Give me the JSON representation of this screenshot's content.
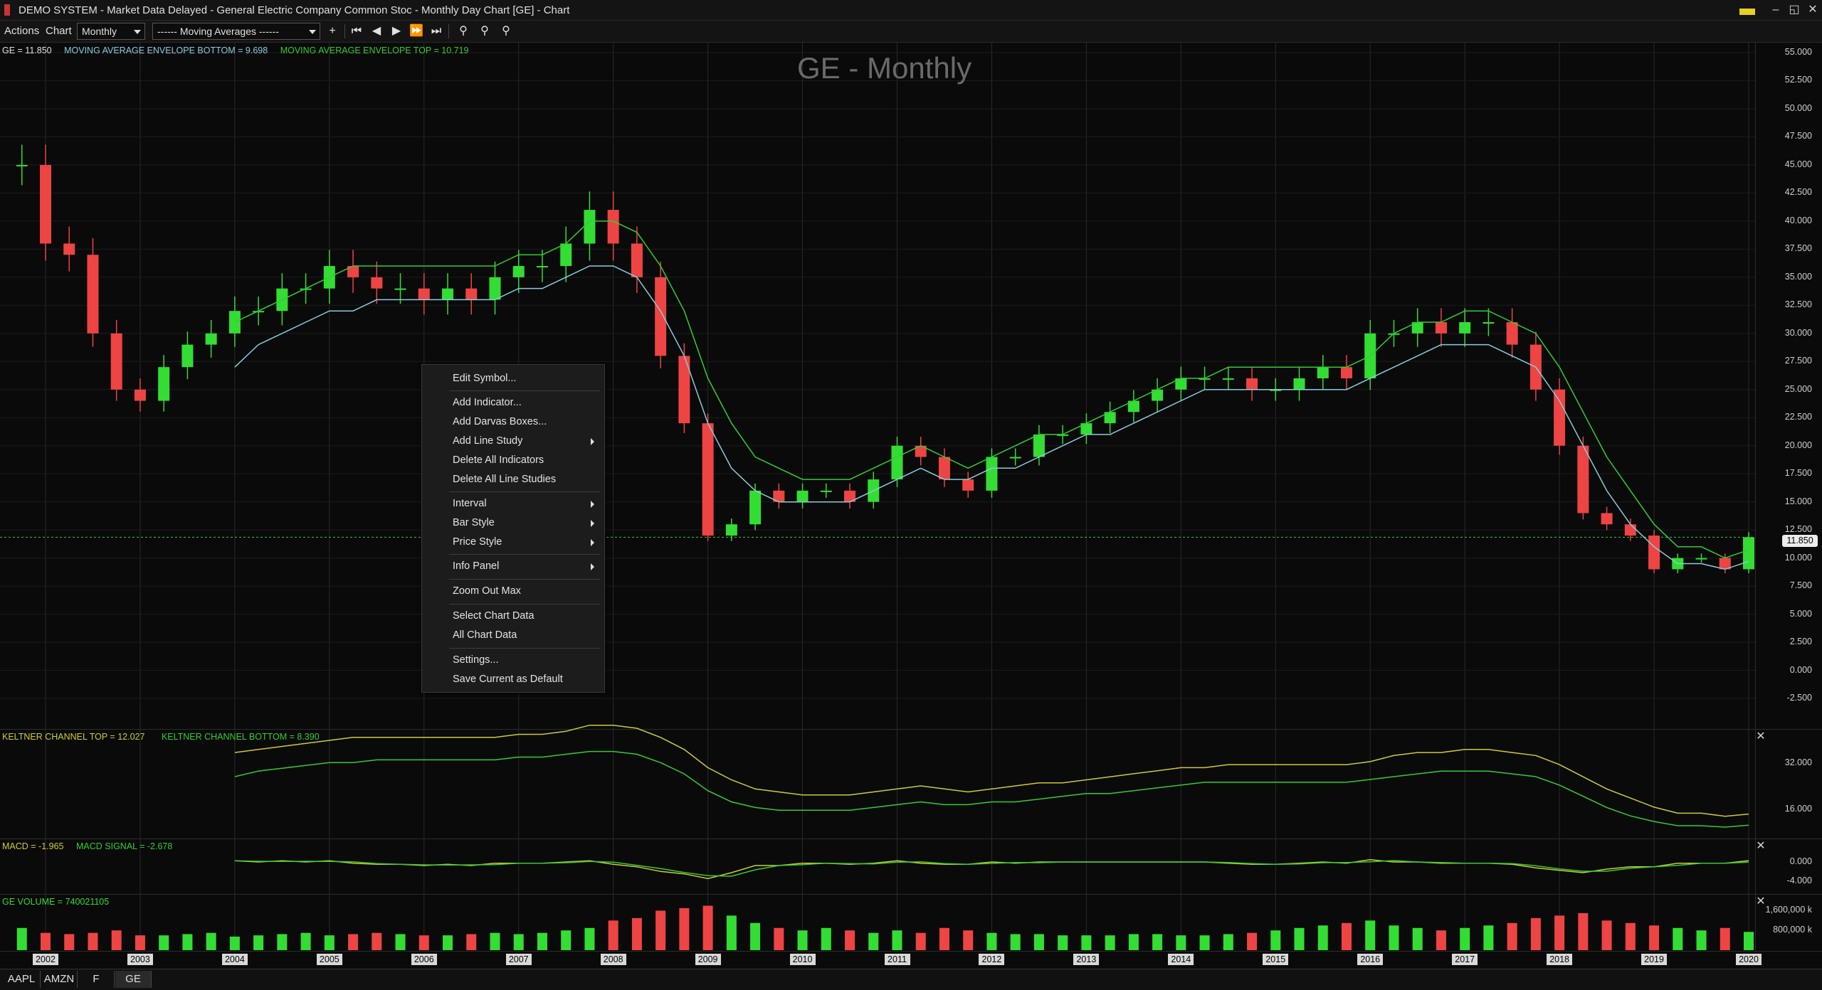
{
  "window": {
    "title": "DEMO SYSTEM - Market Data Delayed - General Electric Company Common Stoc - Monthly Day Chart [GE] - Chart",
    "buttons": [
      "–",
      "◱",
      "✕"
    ]
  },
  "toolbar": {
    "menus": [
      "Actions",
      "Chart"
    ],
    "interval": "Monthly",
    "study": "------ Moving Averages ------"
  },
  "chart": {
    "title": "GE - Monthly",
    "price_legend": {
      "symbol": "GE = 11.850",
      "bottom": "MOVING AVERAGE ENVELOPE BOTTOM = 9.698",
      "top": "MOVING AVERAGE ENVELOPE TOP = 10.719"
    },
    "last_price_tag": "11.850",
    "keltner_legend": {
      "top": "KELTNER CHANNEL TOP = 12.027",
      "bottom": "KELTNER CHANNEL BOTTOM = 8.390"
    },
    "macd_legend": {
      "macd": "MACD = -1.965",
      "signal": "MACD SIGNAL = -2.678"
    },
    "volume_legend": "GE VOLUME = 740021105",
    "price_axis": [
      "55.000",
      "52.500",
      "50.000",
      "47.500",
      "45.000",
      "42.500",
      "40.000",
      "37.500",
      "35.000",
      "32.500",
      "30.000",
      "27.500",
      "25.000",
      "22.500",
      "20.000",
      "17.500",
      "15.000",
      "12.500",
      "10.000",
      "7.500",
      "5.000",
      "2.500",
      "0.000",
      "-2.500"
    ],
    "keltner_axis": [
      "32.000",
      "16.000"
    ],
    "macd_axis": [
      "0.000",
      "-4.000"
    ],
    "volume_axis": [
      "1,600,000 k",
      "800,000 k"
    ],
    "years": [
      "2002",
      "2003",
      "2004",
      "2005",
      "2006",
      "2007",
      "2008",
      "2009",
      "2010",
      "2011",
      "2012",
      "2013",
      "2014",
      "2015",
      "2016",
      "2017",
      "2018",
      "2019",
      "2020"
    ],
    "colors": {
      "up": "#33dd33",
      "down": "#ee4444",
      "env_top": "#33cc33",
      "env_bottom": "#88ccdd",
      "kelt_top": "#cccc33",
      "kelt_bottom": "#33cc33"
    }
  },
  "chart_data": {
    "type": "candlestick",
    "title": "GE - Monthly",
    "ylim": [
      -2.5,
      55
    ],
    "x": [
      "2001-10",
      "2002-01",
      "2002-04",
      "2002-07",
      "2002-10",
      "2003-01",
      "2003-04",
      "2003-07",
      "2003-10",
      "2004-01",
      "2004-04",
      "2004-07",
      "2004-10",
      "2005-01",
      "2005-04",
      "2005-07",
      "2005-10",
      "2006-01",
      "2006-04",
      "2006-07",
      "2006-10",
      "2007-01",
      "2007-04",
      "2007-07",
      "2007-10",
      "2008-01",
      "2008-04",
      "2008-07",
      "2008-10",
      "2009-01",
      "2009-04",
      "2009-07",
      "2009-10",
      "2010-01",
      "2010-04",
      "2010-07",
      "2010-10",
      "2011-01",
      "2011-04",
      "2011-07",
      "2011-10",
      "2012-01",
      "2012-04",
      "2012-07",
      "2012-10",
      "2013-01",
      "2013-04",
      "2013-07",
      "2013-10",
      "2014-01",
      "2014-04",
      "2014-07",
      "2014-10",
      "2015-01",
      "2015-04",
      "2015-07",
      "2015-10",
      "2016-01",
      "2016-04",
      "2016-07",
      "2016-10",
      "2017-01",
      "2017-04",
      "2017-07",
      "2017-10",
      "2018-01",
      "2018-04",
      "2018-07",
      "2018-10",
      "2019-01",
      "2019-04",
      "2019-07",
      "2019-10",
      "2020-01"
    ],
    "close": [
      45,
      38,
      37,
      30,
      25,
      24,
      27,
      29,
      30,
      32,
      32,
      34,
      34,
      36,
      35,
      34,
      34,
      33,
      34,
      33,
      35,
      36,
      36,
      38,
      41,
      38,
      35,
      28,
      22,
      12,
      13,
      16,
      15,
      16,
      16,
      15,
      17,
      20,
      19,
      17,
      16,
      19,
      19,
      21,
      21,
      22,
      23,
      24,
      25,
      26,
      26,
      26,
      25,
      25,
      26,
      27,
      26,
      30,
      30,
      31,
      30,
      31,
      31,
      29,
      25,
      20,
      14,
      13,
      12,
      9,
      10,
      10,
      9,
      11.85
    ],
    "envelope_top": [
      null,
      null,
      null,
      null,
      null,
      null,
      null,
      null,
      null,
      31,
      32,
      33,
      34,
      35,
      36,
      36,
      36,
      36,
      36,
      36,
      36,
      37,
      37,
      38,
      40,
      40,
      39,
      36,
      32,
      26,
      22,
      19,
      18,
      17,
      17,
      17,
      18,
      19,
      20,
      19,
      18,
      19,
      20,
      21,
      21,
      22,
      23,
      24,
      25,
      26,
      26,
      27,
      27,
      27,
      27,
      27,
      27,
      28,
      30,
      31,
      31,
      32,
      32,
      31,
      30,
      27,
      23,
      19,
      16,
      13,
      11,
      11,
      10,
      10.72
    ],
    "envelope_bottom": [
      null,
      null,
      null,
      null,
      null,
      null,
      null,
      null,
      null,
      27,
      29,
      30,
      31,
      32,
      32,
      33,
      33,
      33,
      33,
      33,
      33,
      34,
      34,
      35,
      36,
      36,
      35,
      32,
      28,
      22,
      18,
      16,
      15,
      15,
      15,
      15,
      16,
      17,
      18,
      17,
      17,
      18,
      18,
      19,
      20,
      21,
      21,
      22,
      23,
      24,
      25,
      25,
      25,
      25,
      25,
      25,
      25,
      26,
      27,
      28,
      29,
      29,
      29,
      28,
      27,
      24,
      20,
      16,
      13,
      11,
      9.5,
      9.5,
      9,
      9.7
    ],
    "volume_k": [
      900,
      700,
      650,
      700,
      800,
      600,
      600,
      650,
      700,
      550,
      600,
      650,
      700,
      600,
      650,
      700,
      650,
      600,
      600,
      650,
      700,
      650,
      700,
      800,
      900,
      1200,
      1300,
      1600,
      1700,
      1800,
      1400,
      1100,
      900,
      800,
      900,
      800,
      700,
      800,
      700,
      900,
      800,
      700,
      650,
      650,
      600,
      600,
      600,
      650,
      650,
      600,
      600,
      650,
      700,
      800,
      900,
      1000,
      1100,
      1200,
      1000,
      900,
      800,
      900,
      1000,
      1100,
      1300,
      1400,
      1500,
      1200,
      1100,
      1000,
      900,
      800,
      900,
      740
    ]
  },
  "context_menu": {
    "items": [
      {
        "label": "Edit Symbol...",
        "submenu": false
      },
      {
        "label": "Add Indicator...",
        "submenu": false
      },
      {
        "label": "Add Darvas Boxes...",
        "submenu": false
      },
      {
        "label": "Add Line Study",
        "submenu": true
      },
      {
        "label": "Delete All Indicators",
        "submenu": false
      },
      {
        "label": "Delete All Line Studies",
        "submenu": false
      },
      {
        "label": "Interval",
        "submenu": true
      },
      {
        "label": "Bar Style",
        "submenu": true
      },
      {
        "label": "Price Style",
        "submenu": true
      },
      {
        "label": "Info Panel",
        "submenu": true
      },
      {
        "label": "Zoom Out Max",
        "submenu": false
      },
      {
        "label": "Select Chart Data",
        "submenu": false
      },
      {
        "label": "All Chart Data",
        "submenu": false
      },
      {
        "label": "Settings...",
        "submenu": false
      },
      {
        "label": "Save Current as Default",
        "submenu": false
      }
    ]
  },
  "tabs": [
    "AAPL",
    "AMZN",
    "F",
    "GE"
  ],
  "active_tab": "GE"
}
